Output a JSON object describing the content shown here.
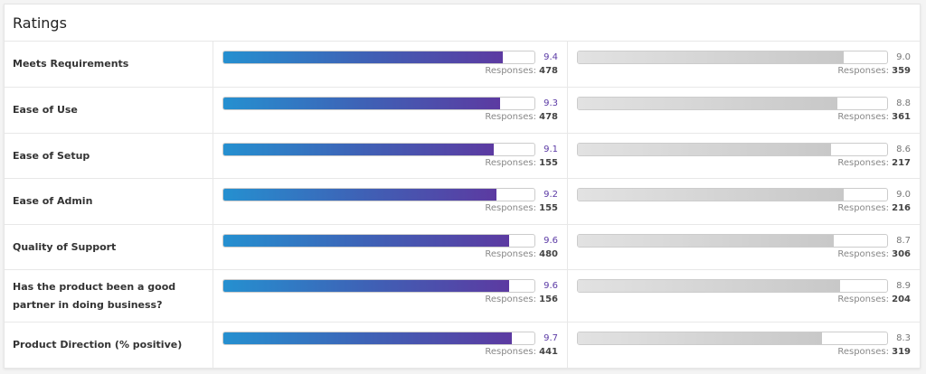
{
  "title": "Ratings",
  "responses_label": "Responses:",
  "colors": {
    "primary_start": "#2590d0",
    "primary_end": "#5c3aa1",
    "comparison": "#c8c8c8"
  },
  "scale_max": 10,
  "rows": [
    {
      "label": "Meets Requirements",
      "score": "9.4",
      "responses": "478",
      "compare_score": "9.0",
      "compare_responses": "359"
    },
    {
      "label": "Ease of Use",
      "score": "9.3",
      "responses": "478",
      "compare_score": "8.8",
      "compare_responses": "361"
    },
    {
      "label": "Ease of Setup",
      "score": "9.1",
      "responses": "155",
      "compare_score": "8.6",
      "compare_responses": "217"
    },
    {
      "label": "Ease of Admin",
      "score": "9.2",
      "responses": "155",
      "compare_score": "9.0",
      "compare_responses": "216"
    },
    {
      "label": "Quality of Support",
      "score": "9.6",
      "responses": "480",
      "compare_score": "8.7",
      "compare_responses": "306"
    },
    {
      "label": "Has the product been a good partner in doing business?",
      "score": "9.6",
      "responses": "156",
      "compare_score": "8.9",
      "compare_responses": "204"
    },
    {
      "label": "Product Direction (% positive)",
      "score": "9.7",
      "responses": "441",
      "compare_score": "8.3",
      "compare_responses": "319"
    }
  ]
}
